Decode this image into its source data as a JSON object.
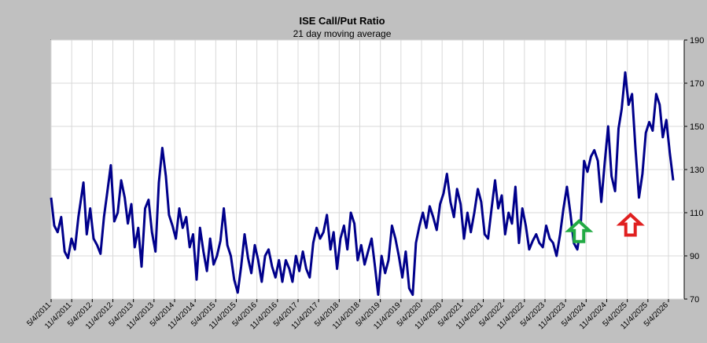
{
  "chart_data": {
    "type": "line",
    "title": "ISE  Call/Put Ratio",
    "subtitle": "21 day moving average",
    "y_axis": {
      "side": "right",
      "ticks": [
        70,
        90,
        110,
        130,
        150,
        170,
        190
      ],
      "ylim": [
        70,
        190
      ]
    },
    "x_axis": {
      "range": [
        "2011-05-04",
        "2026-05-04"
      ],
      "tick_labels": [
        "5/4/2011",
        "11/4/2011",
        "5/4/2012",
        "11/4/2012",
        "5/4/2013",
        "11/4/2013",
        "5/4/2014",
        "11/4/2014",
        "5/4/2015",
        "11/4/2015",
        "5/4/2016",
        "11/4/2016",
        "5/4/2017",
        "11/4/2017",
        "5/4/2018",
        "11/4/2018",
        "5/4/2019",
        "11/4/2019",
        "5/4/2020",
        "11/4/2020",
        "5/4/2021",
        "11/4/2021",
        "5/4/2022",
        "11/4/2022",
        "5/4/2023",
        "11/4/2023",
        "5/4/2024",
        "11/4/2024",
        "5/4/2025",
        "11/4/2025",
        "5/4/2026"
      ]
    },
    "grid": true,
    "colors": {
      "line": "#00008b",
      "plot_bg": "#ffffff",
      "frame_bg": "#c0c0c0",
      "grid": "#d8d8d8",
      "up_arrow": "#22aa44",
      "down_arrow": "#e02020"
    },
    "annotations": [
      {
        "type": "arrow-up",
        "color": "green",
        "x": "2024-03-01",
        "y": 101
      },
      {
        "type": "arrow-up",
        "color": "red",
        "x": "2025-06-01",
        "y": 104
      }
    ],
    "series": [
      {
        "points": [
          [
            "2011-05-04",
            117
          ],
          [
            "2011-06-01",
            104
          ],
          [
            "2011-07-01",
            101
          ],
          [
            "2011-08-01",
            108
          ],
          [
            "2011-09-01",
            92
          ],
          [
            "2011-10-01",
            89
          ],
          [
            "2011-11-01",
            98
          ],
          [
            "2011-12-01",
            93
          ],
          [
            "2012-01-01",
            108
          ],
          [
            "2012-02-15",
            124
          ],
          [
            "2012-03-15",
            100
          ],
          [
            "2012-04-15",
            112
          ],
          [
            "2012-05-15",
            98
          ],
          [
            "2012-06-15",
            95
          ],
          [
            "2012-07-15",
            91
          ],
          [
            "2012-08-15",
            108
          ],
          [
            "2012-09-15",
            120
          ],
          [
            "2012-10-15",
            132
          ],
          [
            "2012-11-15",
            106
          ],
          [
            "2012-12-15",
            110
          ],
          [
            "2013-01-15",
            125
          ],
          [
            "2013-02-15",
            117
          ],
          [
            "2013-03-15",
            105
          ],
          [
            "2013-04-15",
            114
          ],
          [
            "2013-05-15",
            94
          ],
          [
            "2013-06-15",
            103
          ],
          [
            "2013-07-15",
            85
          ],
          [
            "2013-08-15",
            112
          ],
          [
            "2013-09-15",
            116
          ],
          [
            "2013-10-15",
            101
          ],
          [
            "2013-11-15",
            92
          ],
          [
            "2013-12-15",
            124
          ],
          [
            "2014-01-15",
            140
          ],
          [
            "2014-02-15",
            127
          ],
          [
            "2014-03-15",
            109
          ],
          [
            "2014-04-15",
            104
          ],
          [
            "2014-05-15",
            98
          ],
          [
            "2014-06-15",
            112
          ],
          [
            "2014-07-15",
            103
          ],
          [
            "2014-08-15",
            108
          ],
          [
            "2014-09-15",
            94
          ],
          [
            "2014-10-15",
            100
          ],
          [
            "2014-11-15",
            79
          ],
          [
            "2014-12-15",
            103
          ],
          [
            "2015-01-15",
            92
          ],
          [
            "2015-02-15",
            83
          ],
          [
            "2015-03-15",
            98
          ],
          [
            "2015-04-15",
            86
          ],
          [
            "2015-05-15",
            90
          ],
          [
            "2015-06-15",
            97
          ],
          [
            "2015-07-15",
            112
          ],
          [
            "2015-08-15",
            95
          ],
          [
            "2015-09-15",
            90
          ],
          [
            "2015-10-15",
            79
          ],
          [
            "2015-11-15",
            73
          ],
          [
            "2015-12-15",
            85
          ],
          [
            "2016-01-15",
            100
          ],
          [
            "2016-02-15",
            89
          ],
          [
            "2016-03-15",
            82
          ],
          [
            "2016-04-15",
            95
          ],
          [
            "2016-05-15",
            88
          ],
          [
            "2016-06-15",
            78
          ],
          [
            "2016-07-15",
            90
          ],
          [
            "2016-08-15",
            93
          ],
          [
            "2016-09-15",
            85
          ],
          [
            "2016-10-15",
            80
          ],
          [
            "2016-11-15",
            88
          ],
          [
            "2016-12-15",
            78
          ],
          [
            "2017-01-15",
            88
          ],
          [
            "2017-02-15",
            84
          ],
          [
            "2017-03-15",
            78
          ],
          [
            "2017-04-15",
            90
          ],
          [
            "2017-05-15",
            83
          ],
          [
            "2017-06-15",
            92
          ],
          [
            "2017-07-15",
            84
          ],
          [
            "2017-08-15",
            80
          ],
          [
            "2017-09-15",
            96
          ],
          [
            "2017-10-15",
            103
          ],
          [
            "2017-11-15",
            98
          ],
          [
            "2017-12-15",
            101
          ],
          [
            "2018-01-15",
            109
          ],
          [
            "2018-02-15",
            93
          ],
          [
            "2018-03-15",
            101
          ],
          [
            "2018-04-15",
            84
          ],
          [
            "2018-05-15",
            98
          ],
          [
            "2018-06-15",
            104
          ],
          [
            "2018-07-15",
            93
          ],
          [
            "2018-08-15",
            110
          ],
          [
            "2018-09-15",
            105
          ],
          [
            "2018-10-15",
            88
          ],
          [
            "2018-11-15",
            95
          ],
          [
            "2018-12-15",
            86
          ],
          [
            "2019-01-15",
            92
          ],
          [
            "2019-02-15",
            98
          ],
          [
            "2019-03-15",
            86
          ],
          [
            "2019-04-15",
            72
          ],
          [
            "2019-05-15",
            90
          ],
          [
            "2019-06-15",
            82
          ],
          [
            "2019-07-15",
            88
          ],
          [
            "2019-08-15",
            104
          ],
          [
            "2019-09-15",
            98
          ],
          [
            "2019-10-15",
            90
          ],
          [
            "2019-11-15",
            80
          ],
          [
            "2019-12-15",
            92
          ],
          [
            "2020-01-15",
            75
          ],
          [
            "2020-02-15",
            72
          ],
          [
            "2020-03-15",
            96
          ],
          [
            "2020-04-15",
            104
          ],
          [
            "2020-05-15",
            110
          ],
          [
            "2020-06-15",
            103
          ],
          [
            "2020-07-15",
            113
          ],
          [
            "2020-08-15",
            108
          ],
          [
            "2020-09-15",
            102
          ],
          [
            "2020-10-15",
            114
          ],
          [
            "2020-11-15",
            119
          ],
          [
            "2020-12-15",
            128
          ],
          [
            "2021-01-15",
            115
          ],
          [
            "2021-02-15",
            108
          ],
          [
            "2021-03-15",
            121
          ],
          [
            "2021-04-15",
            114
          ],
          [
            "2021-05-15",
            98
          ],
          [
            "2021-06-15",
            110
          ],
          [
            "2021-07-15",
            101
          ],
          [
            "2021-08-15",
            110
          ],
          [
            "2021-09-15",
            121
          ],
          [
            "2021-10-15",
            115
          ],
          [
            "2021-11-15",
            100
          ],
          [
            "2021-12-15",
            98
          ],
          [
            "2022-01-15",
            112
          ],
          [
            "2022-02-15",
            125
          ],
          [
            "2022-03-15",
            112
          ],
          [
            "2022-04-15",
            118
          ],
          [
            "2022-05-15",
            100
          ],
          [
            "2022-06-15",
            110
          ],
          [
            "2022-07-15",
            105
          ],
          [
            "2022-08-15",
            122
          ],
          [
            "2022-09-15",
            96
          ],
          [
            "2022-10-15",
            112
          ],
          [
            "2022-11-15",
            104
          ],
          [
            "2022-12-15",
            93
          ],
          [
            "2023-01-15",
            97
          ],
          [
            "2023-02-15",
            100
          ],
          [
            "2023-03-15",
            96
          ],
          [
            "2023-04-15",
            94
          ],
          [
            "2023-05-15",
            104
          ],
          [
            "2023-06-15",
            98
          ],
          [
            "2023-07-15",
            96
          ],
          [
            "2023-08-15",
            90
          ],
          [
            "2023-09-15",
            100
          ],
          [
            "2023-10-15",
            112
          ],
          [
            "2023-11-15",
            122
          ],
          [
            "2023-12-15",
            110
          ],
          [
            "2024-01-15",
            96
          ],
          [
            "2024-02-15",
            93
          ],
          [
            "2024-03-15",
            103
          ],
          [
            "2024-04-15",
            134
          ],
          [
            "2024-05-15",
            129
          ],
          [
            "2024-06-15",
            136
          ],
          [
            "2024-07-15",
            139
          ],
          [
            "2024-08-15",
            134
          ],
          [
            "2024-09-15",
            115
          ],
          [
            "2024-10-15",
            133
          ],
          [
            "2024-11-15",
            150
          ],
          [
            "2024-12-15",
            127
          ],
          [
            "2025-01-15",
            120
          ],
          [
            "2025-02-15",
            149
          ],
          [
            "2025-03-15",
            158
          ],
          [
            "2025-04-15",
            175
          ],
          [
            "2025-05-15",
            160
          ],
          [
            "2025-06-15",
            165
          ],
          [
            "2025-07-15",
            140
          ],
          [
            "2025-08-15",
            117
          ],
          [
            "2025-09-15",
            128
          ],
          [
            "2025-10-15",
            147
          ],
          [
            "2025-11-15",
            152
          ],
          [
            "2025-12-15",
            148
          ],
          [
            "2026-01-15",
            165
          ],
          [
            "2026-02-15",
            160
          ],
          [
            "2026-03-15",
            145
          ],
          [
            "2026-04-15",
            153
          ],
          [
            "2026-05-15",
            138
          ],
          [
            "2026-06-15",
            125
          ]
        ]
      }
    ]
  }
}
